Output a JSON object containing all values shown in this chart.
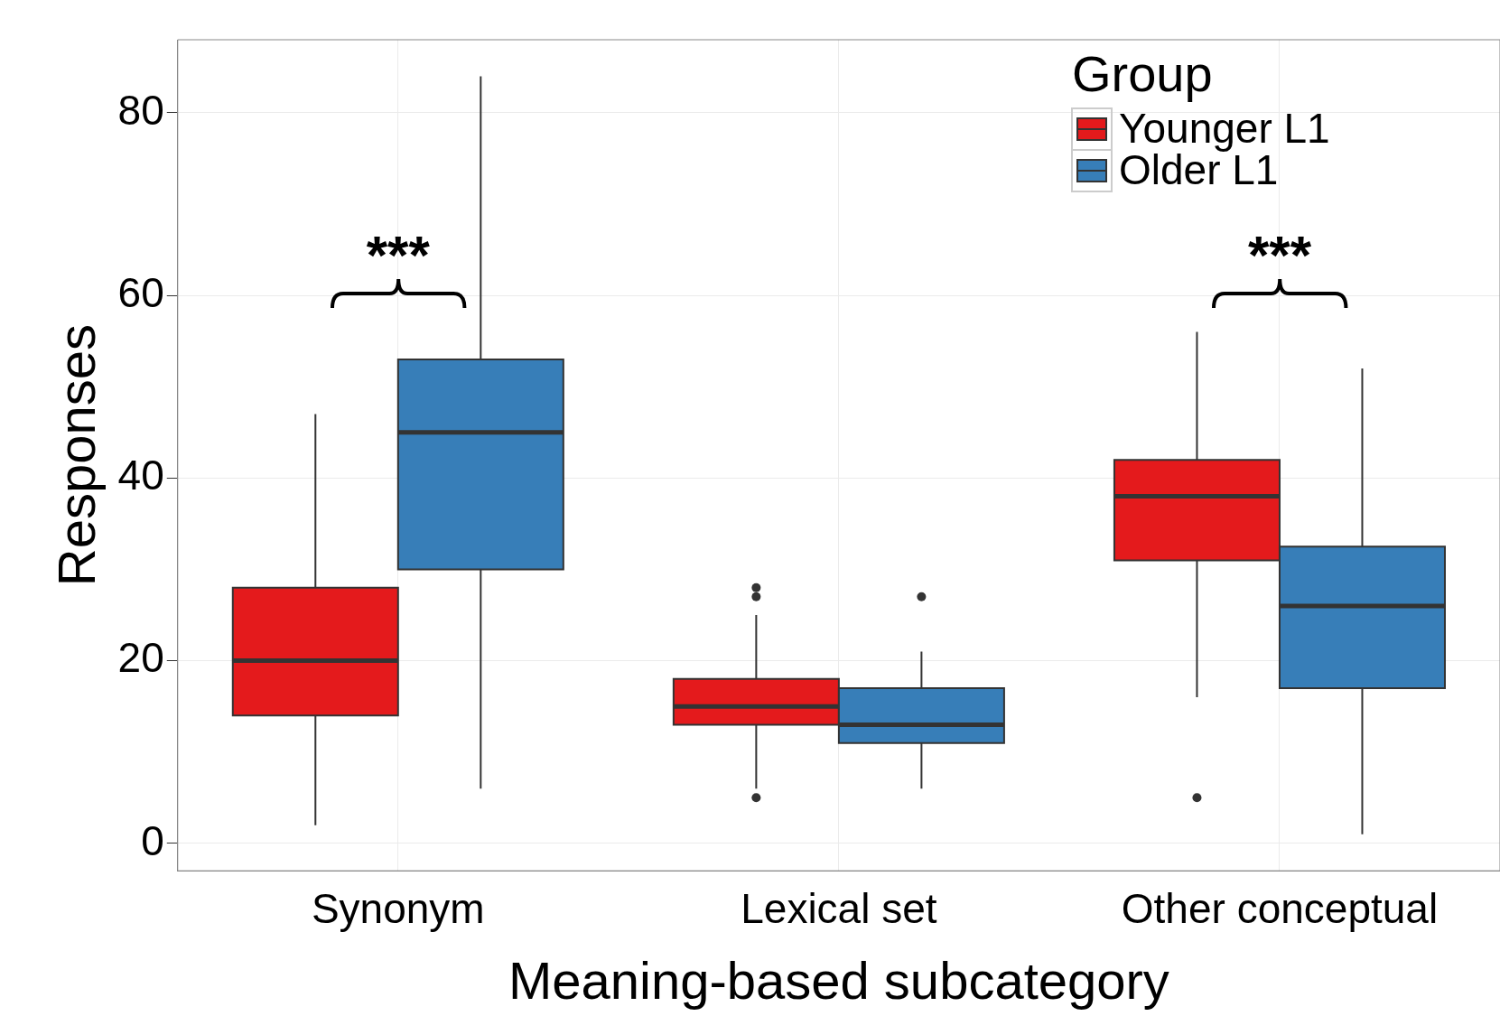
{
  "chart_data": {
    "type": "box",
    "xlabel": "Meaning-based subcategory",
    "ylabel": "Responses",
    "legend_title": "Group",
    "legend": "top right",
    "grid": true,
    "categories": [
      "Synonym",
      "Lexical set",
      "Other conceptual"
    ],
    "ylim": [
      -3,
      88
    ],
    "yticks": [
      0,
      20,
      40,
      60,
      80
    ],
    "series": [
      {
        "name": "Younger L1",
        "color": "#e41a1c",
        "boxes": [
          {
            "low": 2,
            "q1": 14,
            "median": 20,
            "q3": 28,
            "high": 47
          },
          {
            "low": 6,
            "q1": 13,
            "median": 15,
            "q3": 18,
            "high": 25,
            "outliers": [
              28,
              27,
              5
            ]
          },
          {
            "low": 16,
            "q1": 31,
            "median": 38,
            "q3": 42,
            "high": 56,
            "outliers": [
              5
            ]
          }
        ]
      },
      {
        "name": "Older L1",
        "color": "#377eb8",
        "boxes": [
          {
            "low": 6,
            "q1": 30,
            "median": 45,
            "q3": 53,
            "high": 84
          },
          {
            "low": 6,
            "q1": 11,
            "median": 13,
            "q3": 17,
            "high": 21,
            "outliers": [
              27
            ]
          },
          {
            "low": 1,
            "q1": 17,
            "median": 26,
            "q3": 32.5,
            "high": 52
          }
        ]
      }
    ],
    "annotations": [
      "***",
      "***"
    ]
  }
}
